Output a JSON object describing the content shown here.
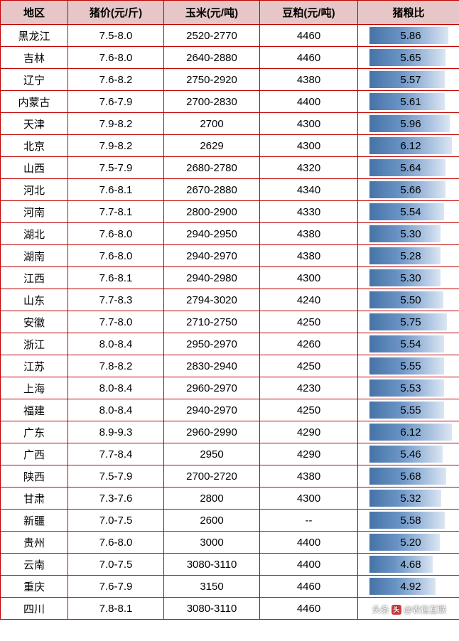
{
  "table": {
    "columns": [
      "地区",
      "猪价(元/斤)",
      "玉米(元/吨)",
      "豆粕(元/吨)",
      "猪粮比"
    ],
    "ratio_max": 6.12,
    "rows": [
      {
        "region": "黑龙江",
        "pig": "7.5-8.0",
        "corn": "2520-2770",
        "meal": "4460",
        "ratio": "5.86"
      },
      {
        "region": "吉林",
        "pig": "7.6-8.0",
        "corn": "2640-2880",
        "meal": "4460",
        "ratio": "5.65"
      },
      {
        "region": "辽宁",
        "pig": "7.6-8.2",
        "corn": "2750-2920",
        "meal": "4380",
        "ratio": "5.57"
      },
      {
        "region": "内蒙古",
        "pig": "7.6-7.9",
        "corn": "2700-2830",
        "meal": "4400",
        "ratio": "5.61"
      },
      {
        "region": "天津",
        "pig": "7.9-8.2",
        "corn": "2700",
        "meal": "4300",
        "ratio": "5.96"
      },
      {
        "region": "北京",
        "pig": "7.9-8.2",
        "corn": "2629",
        "meal": "4300",
        "ratio": "6.12"
      },
      {
        "region": "山西",
        "pig": "7.5-7.9",
        "corn": "2680-2780",
        "meal": "4320",
        "ratio": "5.64"
      },
      {
        "region": "河北",
        "pig": "7.6-8.1",
        "corn": "2670-2880",
        "meal": "4340",
        "ratio": "5.66"
      },
      {
        "region": "河南",
        "pig": "7.7-8.1",
        "corn": "2800-2900",
        "meal": "4330",
        "ratio": "5.54"
      },
      {
        "region": "湖北",
        "pig": "7.6-8.0",
        "corn": "2940-2950",
        "meal": "4380",
        "ratio": "5.30"
      },
      {
        "region": "湖南",
        "pig": "7.6-8.0",
        "corn": "2940-2970",
        "meal": "4380",
        "ratio": "5.28"
      },
      {
        "region": "江西",
        "pig": "7.6-8.1",
        "corn": "2940-2980",
        "meal": "4300",
        "ratio": "5.30"
      },
      {
        "region": "山东",
        "pig": "7.7-8.3",
        "corn": "2794-3020",
        "meal": "4240",
        "ratio": "5.50"
      },
      {
        "region": "安徽",
        "pig": "7.7-8.0",
        "corn": "2710-2750",
        "meal": "4250",
        "ratio": "5.75"
      },
      {
        "region": "浙江",
        "pig": "8.0-8.4",
        "corn": "2950-2970",
        "meal": "4260",
        "ratio": "5.54"
      },
      {
        "region": "江苏",
        "pig": "7.8-8.2",
        "corn": "2830-2940",
        "meal": "4250",
        "ratio": "5.55"
      },
      {
        "region": "上海",
        "pig": "8.0-8.4",
        "corn": "2960-2970",
        "meal": "4230",
        "ratio": "5.53"
      },
      {
        "region": "福建",
        "pig": "8.0-8.4",
        "corn": "2940-2970",
        "meal": "4250",
        "ratio": "5.55"
      },
      {
        "region": "广东",
        "pig": "8.9-9.3",
        "corn": "2960-2990",
        "meal": "4290",
        "ratio": "6.12"
      },
      {
        "region": "广西",
        "pig": "7.7-8.4",
        "corn": "2950",
        "meal": "4290",
        "ratio": "5.46"
      },
      {
        "region": "陕西",
        "pig": "7.5-7.9",
        "corn": "2700-2720",
        "meal": "4380",
        "ratio": "5.68"
      },
      {
        "region": "甘肃",
        "pig": "7.3-7.6",
        "corn": "2800",
        "meal": "4300",
        "ratio": "5.32"
      },
      {
        "region": "新疆",
        "pig": "7.0-7.5",
        "corn": "2600",
        "meal": "--",
        "ratio": "5.58"
      },
      {
        "region": "贵州",
        "pig": "7.6-8.0",
        "corn": "3000",
        "meal": "4400",
        "ratio": "5.20"
      },
      {
        "region": "云南",
        "pig": "7.0-7.5",
        "corn": "3080-3110",
        "meal": "4400",
        "ratio": "4.68"
      },
      {
        "region": "重庆",
        "pig": "7.6-7.9",
        "corn": "3150",
        "meal": "4460",
        "ratio": "4.92"
      },
      {
        "region": "四川",
        "pig": "7.8-8.1",
        "corn": "3080-3110",
        "meal": "4460",
        "ratio": ""
      }
    ]
  },
  "watermark": {
    "prefix": "头条",
    "at": "@农信互联"
  },
  "style": {
    "border_color": "#c00000",
    "header_bg": "#e6c6c6",
    "bar_gradient": [
      "#4573a7",
      "#6a93c4",
      "#aac2e0",
      "#dbe6f3"
    ],
    "font_family": "Microsoft YaHei"
  }
}
